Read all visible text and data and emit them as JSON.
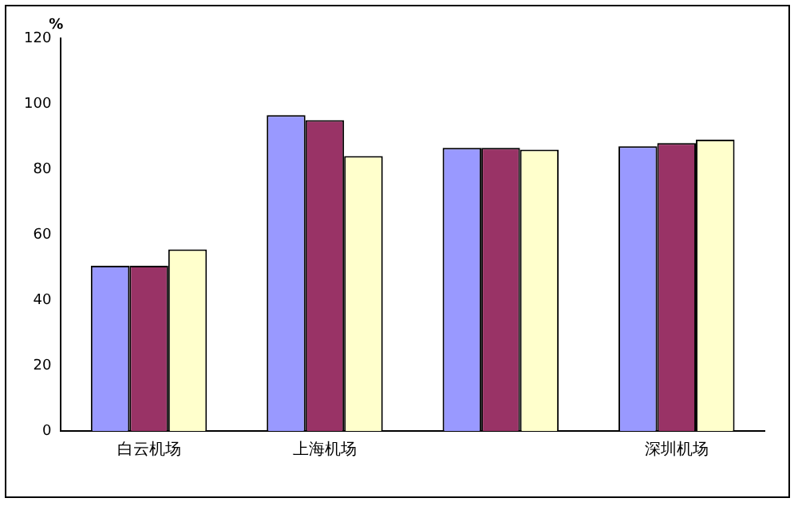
{
  "chart_data": {
    "type": "bar",
    "ylabel": "%",
    "categories": [
      "白云机场",
      "上海机场",
      null,
      "深圳机场"
    ],
    "series": [
      {
        "color": "#9999ff",
        "values": [
          50.5,
          96.5,
          86.5,
          87
        ]
      },
      {
        "color": "#993366",
        "values": [
          50.5,
          95,
          86.5,
          88
        ]
      },
      {
        "color": "#ffffcc",
        "values": [
          55.5,
          84,
          86,
          89
        ]
      }
    ],
    "ylim": [
      0,
      120
    ],
    "yticks": [
      0,
      20,
      40,
      60,
      80,
      100,
      120
    ],
    "grid": false,
    "legend": false
  }
}
